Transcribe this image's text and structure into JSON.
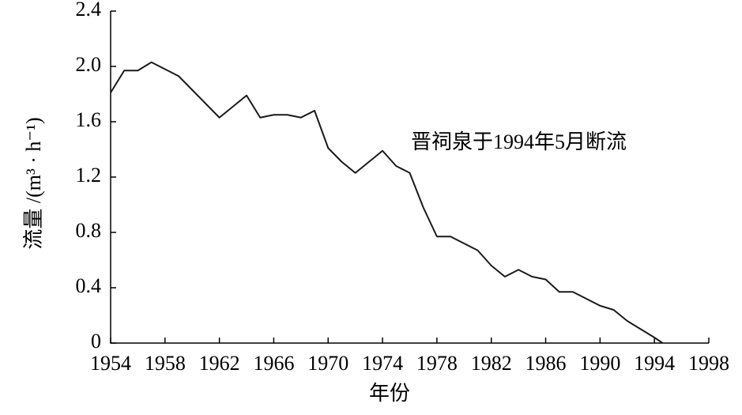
{
  "chart_data": {
    "type": "line",
    "x_label": "年份",
    "y_label": "流量 /(m³ · h⁻¹)",
    "annotation": "晋祠泉于1994年5月断流",
    "x": [
      1954,
      1955,
      1956,
      1957,
      1958,
      1959,
      1960,
      1961,
      1962,
      1963,
      1964,
      1965,
      1966,
      1967,
      1968,
      1969,
      1970,
      1971,
      1972,
      1973,
      1974,
      1975,
      1976,
      1977,
      1978,
      1979,
      1980,
      1981,
      1982,
      1983,
      1984,
      1985,
      1986,
      1987,
      1988,
      1989,
      1990,
      1991,
      1992,
      1993,
      1994,
      1994.6
    ],
    "series": [
      {
        "color": "#1a1a1a",
        "values": [
          1.81,
          1.97,
          1.97,
          2.03,
          1.98,
          1.93,
          1.83,
          1.73,
          1.63,
          1.71,
          1.79,
          1.63,
          1.65,
          1.65,
          1.63,
          1.68,
          1.41,
          1.31,
          1.23,
          1.31,
          1.39,
          1.28,
          1.23,
          0.98,
          0.77,
          0.77,
          0.72,
          0.67,
          0.56,
          0.48,
          0.53,
          0.48,
          0.46,
          0.37,
          0.37,
          0.32,
          0.27,
          0.24,
          0.16,
          0.1,
          0.04,
          0
        ]
      }
    ],
    "xlim": [
      1954,
      1998
    ],
    "xticks": [
      1954,
      1958,
      1962,
      1966,
      1970,
      1974,
      1978,
      1982,
      1986,
      1990,
      1994,
      1998
    ],
    "ylim": [
      0,
      2.4
    ],
    "yticks": [
      0,
      0.4,
      0.8,
      1.2,
      1.6,
      {
        "value": 2,
        "label": "2.0"
      },
      2.4
    ]
  }
}
